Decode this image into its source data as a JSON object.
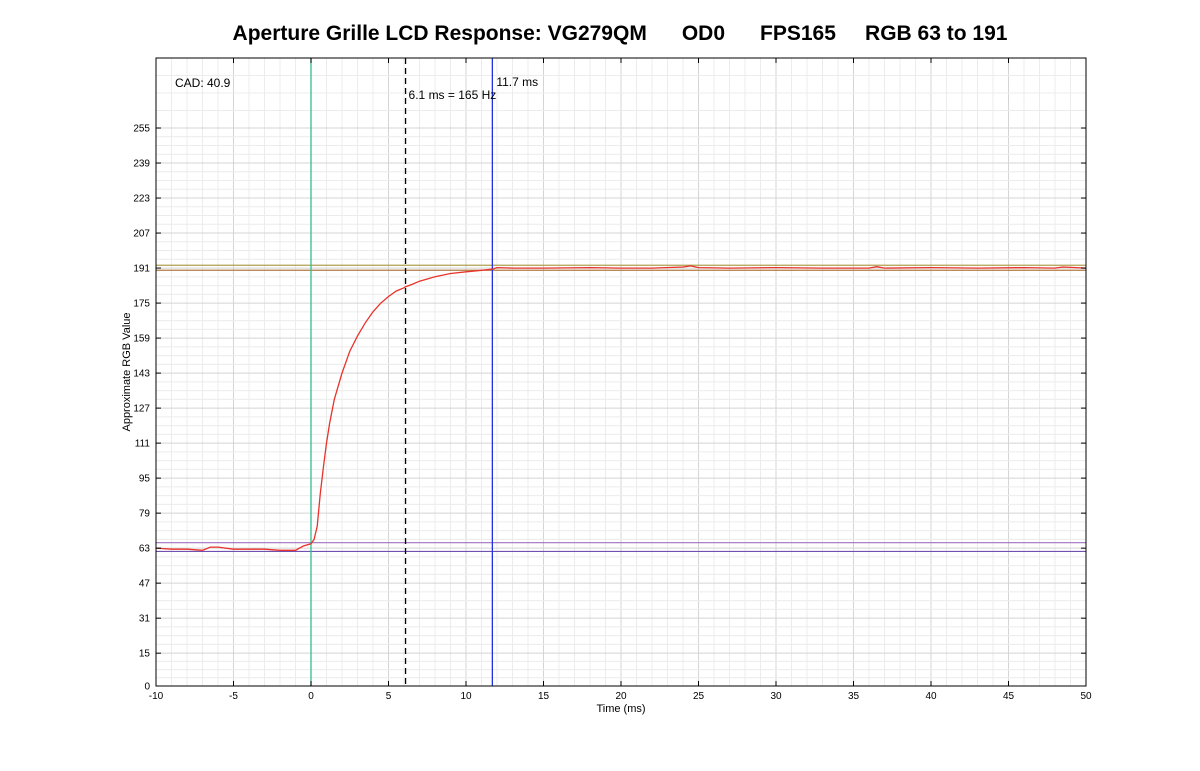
{
  "chart_data": {
    "type": "line",
    "title": "Aperture Grille LCD Response: VG279QM      OD0      FPS165     RGB 63 to 191",
    "xlabel": "Time (ms)",
    "ylabel": "Approximate RGB Value",
    "xlim": [
      -10,
      50
    ],
    "ylim": [
      0,
      287
    ],
    "x_ticks": [
      -10,
      -5,
      0,
      5,
      10,
      15,
      20,
      25,
      30,
      35,
      40,
      45,
      50
    ],
    "y_ticks": [
      0,
      15,
      31,
      47,
      63,
      79,
      95,
      111,
      127,
      143,
      159,
      175,
      191,
      207,
      223,
      239,
      255
    ],
    "grid": true,
    "annotations": {
      "cad": "CAD: 40.9",
      "frame_time": "6.1 ms = 165 Hz",
      "response_time": "11.7 ms"
    },
    "vertical_markers": [
      {
        "x": 0,
        "color": "#2fbf8f",
        "style": "solid"
      },
      {
        "x": 6.1,
        "color": "#000000",
        "style": "dashed"
      },
      {
        "x": 11.7,
        "color": "#2233dd",
        "style": "solid"
      }
    ],
    "horizontal_bands": [
      {
        "y": 192.3,
        "color": "#b0a050"
      },
      {
        "y": 190.0,
        "color": "#b07a40"
      },
      {
        "y": 65.5,
        "color": "#a070c0"
      },
      {
        "y": 61.5,
        "color": "#7050b0"
      }
    ],
    "series": [
      {
        "color": "#e8322a",
        "x": [
          -10,
          -9,
          -8,
          -7,
          -6.5,
          -6,
          -5,
          -4,
          -3,
          -2,
          -1,
          -0.5,
          0,
          0.2,
          0.4,
          0.6,
          0.8,
          1,
          1.2,
          1.5,
          2,
          2.5,
          3,
          3.5,
          4,
          4.5,
          5,
          5.5,
          6,
          6.1,
          6.5,
          7,
          8,
          9,
          10,
          11,
          11.7,
          12,
          13,
          15,
          18,
          20,
          22,
          24,
          24.5,
          25,
          27,
          30,
          33,
          36,
          36.5,
          37,
          40,
          43,
          46,
          48,
          48.5,
          50
        ],
        "y": [
          63,
          62.5,
          62.5,
          62,
          63.5,
          63.5,
          62.5,
          62.5,
          62.5,
          62,
          62,
          64,
          65,
          67,
          73,
          88,
          100,
          111,
          120,
          131,
          143,
          153,
          160,
          166,
          171,
          175,
          178,
          180.5,
          182,
          182.5,
          183.5,
          185,
          187,
          188.5,
          189.3,
          190,
          190.5,
          191.2,
          191,
          191,
          191.2,
          191,
          191,
          191.5,
          192,
          191.2,
          191,
          191.2,
          191,
          191,
          191.6,
          191,
          191.2,
          191,
          191.2,
          191,
          191.5,
          191
        ]
      }
    ]
  }
}
